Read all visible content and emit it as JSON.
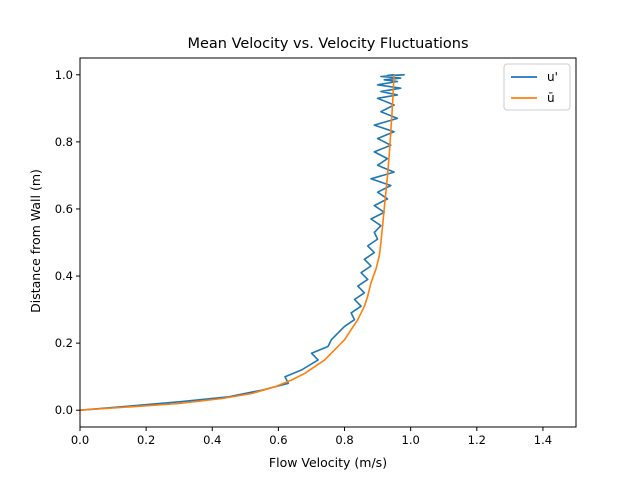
{
  "chart_data": {
    "type": "line",
    "title": "Mean Velocity vs. Velocity Fluctuations",
    "xlabel": "Flow Velocity (m/s)",
    "ylabel": "Distance from Wall (m)",
    "xlim": [
      0,
      1.5
    ],
    "ylim": [
      -0.05,
      1.05
    ],
    "xticks": [
      "0.0",
      "0.2",
      "0.4",
      "0.6",
      "0.8",
      "1.0",
      "1.2",
      "1.4"
    ],
    "yticks": [
      "0.0",
      "0.2",
      "0.4",
      "0.6",
      "0.8",
      "1.0"
    ],
    "grid": false,
    "legend_position": "top-right",
    "colors": {
      "u_prime": "#1f77b4",
      "u_mean": "#ff7f0e"
    },
    "series": [
      {
        "name": "u'",
        "color": "#1f77b4",
        "x": [
          0.0,
          0.12,
          0.3,
          0.45,
          0.55,
          0.63,
          0.62,
          0.67,
          0.72,
          0.7,
          0.75,
          0.76,
          0.78,
          0.8,
          0.83,
          0.82,
          0.85,
          0.83,
          0.86,
          0.84,
          0.87,
          0.85,
          0.88,
          0.86,
          0.89,
          0.87,
          0.9,
          0.89,
          0.91,
          0.88,
          0.92,
          0.89,
          0.93,
          0.9,
          0.94,
          0.88,
          0.95,
          0.9,
          0.93,
          0.89,
          0.94,
          0.9,
          0.95,
          0.89,
          0.96,
          0.91,
          0.95,
          0.9,
          0.96,
          0.91,
          0.97,
          0.9,
          0.96,
          0.92,
          0.97,
          0.91,
          0.98,
          0.93,
          0.95
        ],
        "y": [
          0.0,
          0.01,
          0.025,
          0.04,
          0.06,
          0.08,
          0.1,
          0.12,
          0.15,
          0.17,
          0.19,
          0.21,
          0.23,
          0.25,
          0.27,
          0.29,
          0.31,
          0.33,
          0.35,
          0.37,
          0.39,
          0.41,
          0.43,
          0.45,
          0.47,
          0.49,
          0.51,
          0.53,
          0.55,
          0.57,
          0.59,
          0.61,
          0.63,
          0.65,
          0.67,
          0.69,
          0.71,
          0.73,
          0.75,
          0.77,
          0.79,
          0.81,
          0.83,
          0.85,
          0.87,
          0.89,
          0.91,
          0.93,
          0.94,
          0.95,
          0.96,
          0.97,
          0.98,
          0.985,
          0.99,
          0.995,
          1.0,
          0.998,
          1.0
        ]
      },
      {
        "name": "ū",
        "color": "#ff7f0e",
        "x": [
          0.0,
          0.15,
          0.3,
          0.43,
          0.52,
          0.59,
          0.64,
          0.68,
          0.71,
          0.74,
          0.76,
          0.78,
          0.8,
          0.82,
          0.84,
          0.86,
          0.87,
          0.88,
          0.895,
          0.905,
          0.91,
          0.915,
          0.92,
          0.925,
          0.93,
          0.935,
          0.94,
          0.945,
          0.95
        ],
        "y": [
          0.0,
          0.01,
          0.02,
          0.035,
          0.05,
          0.07,
          0.09,
          0.11,
          0.13,
          0.15,
          0.17,
          0.19,
          0.21,
          0.24,
          0.27,
          0.31,
          0.34,
          0.38,
          0.42,
          0.46,
          0.5,
          0.55,
          0.6,
          0.65,
          0.7,
          0.76,
          0.83,
          0.91,
          1.0
        ]
      }
    ]
  }
}
